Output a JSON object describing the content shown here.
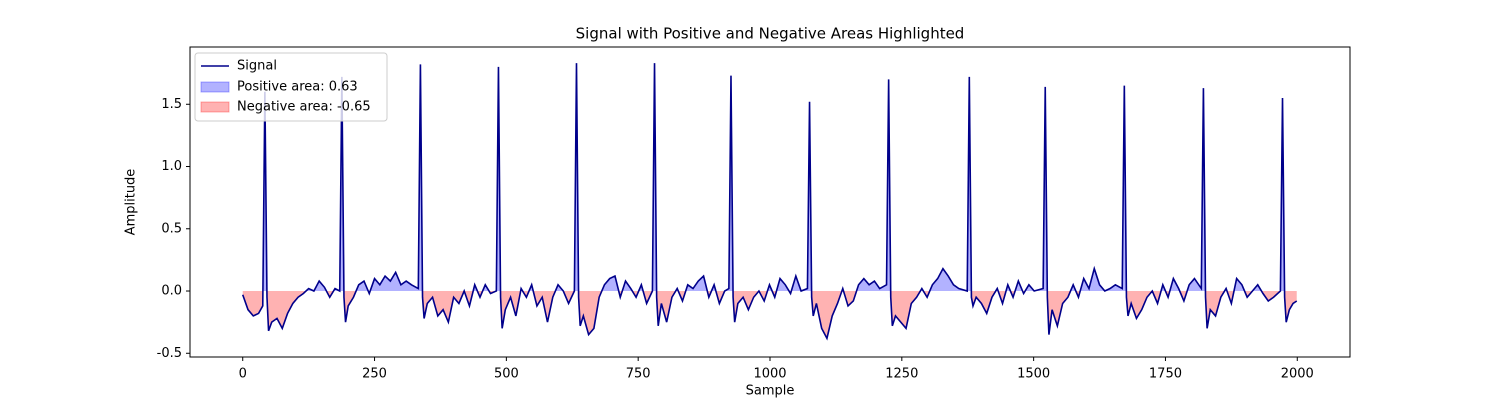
{
  "chart_data": {
    "type": "line",
    "title": "Signal with Positive and Negative Areas Highlighted",
    "xlabel": "Sample",
    "ylabel": "Amplitude",
    "x": [
      0,
      10,
      20,
      30,
      38,
      42,
      46,
      49,
      55,
      65,
      75,
      85,
      95,
      105,
      115,
      125,
      135,
      145,
      155,
      165,
      175,
      184,
      188,
      192,
      195,
      200,
      210,
      220,
      230,
      240,
      250,
      260,
      270,
      280,
      290,
      300,
      310,
      320,
      333,
      337,
      341,
      344,
      350,
      360,
      370,
      380,
      390,
      400,
      410,
      420,
      430,
      440,
      450,
      460,
      470,
      481,
      485,
      489,
      492,
      498,
      508,
      518,
      528,
      538,
      548,
      558,
      568,
      578,
      588,
      598,
      608,
      618,
      629,
      633,
      637,
      640,
      646,
      656,
      666,
      676,
      686,
      696,
      706,
      716,
      726,
      736,
      746,
      756,
      766,
      777,
      781,
      785,
      788,
      794,
      804,
      814,
      824,
      834,
      844,
      854,
      864,
      874,
      884,
      894,
      904,
      914,
      922,
      926,
      930,
      933,
      939,
      949,
      959,
      969,
      979,
      989,
      999,
      1009,
      1019,
      1029,
      1039,
      1049,
      1059,
      1071,
      1075,
      1079,
      1082,
      1088,
      1098,
      1108,
      1118,
      1128,
      1138,
      1148,
      1158,
      1168,
      1178,
      1188,
      1198,
      1208,
      1221,
      1225,
      1229,
      1232,
      1238,
      1248,
      1258,
      1268,
      1278,
      1288,
      1298,
      1308,
      1318,
      1328,
      1338,
      1348,
      1358,
      1374,
      1378,
      1382,
      1385,
      1391,
      1401,
      1411,
      1421,
      1431,
      1441,
      1451,
      1461,
      1471,
      1481,
      1491,
      1501,
      1518,
      1522,
      1526,
      1529,
      1535,
      1545,
      1555,
      1565,
      1575,
      1585,
      1595,
      1605,
      1615,
      1625,
      1635,
      1645,
      1655,
      1668,
      1672,
      1676,
      1679,
      1685,
      1695,
      1705,
      1715,
      1725,
      1735,
      1745,
      1755,
      1765,
      1775,
      1785,
      1795,
      1805,
      1818,
      1822,
      1826,
      1829,
      1835,
      1845,
      1855,
      1865,
      1875,
      1885,
      1895,
      1905,
      1915,
      1925,
      1935,
      1945,
      1955,
      1968,
      1972,
      1976,
      1979,
      1985,
      1992,
      1999
    ],
    "series": [
      {
        "name": "Signal",
        "color": "#00008b",
        "values": [
          -0.03,
          -0.15,
          -0.2,
          -0.18,
          -0.12,
          1.6,
          -0.05,
          -0.32,
          -0.25,
          -0.22,
          -0.3,
          -0.18,
          -0.1,
          -0.05,
          -0.02,
          0.02,
          0.0,
          0.08,
          0.03,
          -0.05,
          0.02,
          0.0,
          1.72,
          -0.05,
          -0.25,
          -0.12,
          -0.05,
          0.05,
          0.08,
          -0.02,
          0.1,
          0.05,
          0.12,
          0.08,
          0.15,
          0.05,
          0.08,
          0.05,
          0.02,
          1.82,
          -0.05,
          -0.22,
          -0.1,
          -0.05,
          -0.2,
          -0.15,
          -0.25,
          -0.05,
          -0.1,
          0.0,
          -0.12,
          0.05,
          -0.05,
          0.05,
          -0.02,
          0.0,
          1.8,
          -0.05,
          -0.3,
          -0.15,
          -0.05,
          -0.2,
          0.02,
          -0.05,
          0.05,
          -0.12,
          -0.05,
          -0.25,
          -0.05,
          0.05,
          0.0,
          -0.1,
          0.0,
          1.83,
          -0.05,
          -0.28,
          -0.2,
          -0.35,
          -0.3,
          -0.05,
          0.05,
          0.1,
          0.12,
          -0.05,
          0.08,
          0.02,
          -0.05,
          0.05,
          -0.1,
          0.0,
          1.83,
          -0.05,
          -0.28,
          -0.1,
          -0.25,
          -0.05,
          0.02,
          -0.08,
          0.05,
          0.02,
          0.08,
          0.12,
          -0.05,
          0.05,
          -0.1,
          0.0,
          0.02,
          1.73,
          -0.05,
          -0.25,
          -0.1,
          -0.05,
          -0.15,
          -0.05,
          0.0,
          -0.08,
          0.05,
          -0.05,
          0.1,
          0.05,
          -0.02,
          0.12,
          0.0,
          0.02,
          1.52,
          -0.05,
          -0.2,
          -0.1,
          -0.3,
          -0.38,
          -0.2,
          -0.1,
          0.02,
          -0.12,
          -0.08,
          0.05,
          0.1,
          0.05,
          0.08,
          0.02,
          0.05,
          1.7,
          -0.05,
          -0.28,
          -0.2,
          -0.25,
          -0.3,
          -0.1,
          -0.05,
          0.02,
          -0.05,
          0.05,
          0.1,
          0.18,
          0.12,
          0.05,
          0.02,
          0.0,
          1.72,
          -0.05,
          -0.12,
          -0.05,
          -0.1,
          -0.18,
          -0.05,
          0.02,
          -0.1,
          0.05,
          -0.05,
          0.08,
          -0.02,
          0.05,
          0.0,
          0.02,
          1.64,
          -0.05,
          -0.35,
          -0.15,
          -0.28,
          -0.1,
          -0.05,
          0.05,
          -0.05,
          0.1,
          0.02,
          0.18,
          0.05,
          0.0,
          0.02,
          0.05,
          0.02,
          1.65,
          -0.05,
          -0.2,
          -0.1,
          -0.22,
          -0.15,
          -0.05,
          0.0,
          -0.1,
          0.05,
          -0.05,
          0.1,
          0.02,
          -0.08,
          0.05,
          0.1,
          0.02,
          1.63,
          -0.05,
          -0.3,
          -0.15,
          -0.2,
          -0.05,
          0.02,
          -0.1,
          0.1,
          0.05,
          -0.05,
          0.0,
          0.05,
          -0.02,
          -0.08,
          -0.05,
          0.0,
          1.55,
          -0.05,
          -0.25,
          -0.15,
          -0.1,
          -0.08
        ]
      }
    ],
    "areas": [
      {
        "name": "Positive area: 0.63",
        "color": "#0000ff"
      },
      {
        "name": "Negative area: -0.65",
        "color": "#ff0000"
      }
    ],
    "xlim": [
      -100,
      2100
    ],
    "ylim": [
      -0.53,
      1.96
    ],
    "xticks": [
      0,
      250,
      500,
      750,
      1000,
      1250,
      1500,
      1750,
      2000
    ],
    "yticks": [
      -0.5,
      {
        "value": 0,
        "label": "0.0"
      },
      0.5,
      {
        "value": 1,
        "label": "1.0"
      },
      1.5
    ],
    "grid": false,
    "legend": "upper left"
  }
}
